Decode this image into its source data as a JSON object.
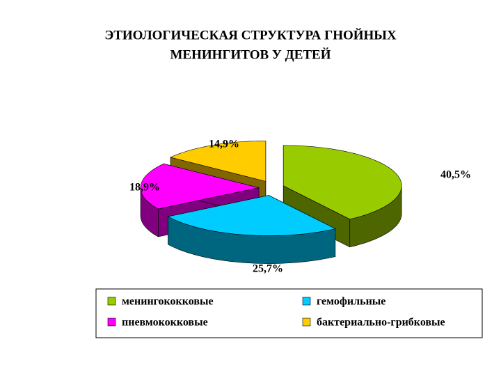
{
  "chart_data": {
    "type": "pie",
    "title": [
      "ЭТИОЛОГИЧЕСКАЯ  СТРУКТУРА  ГНОЙНЫХ",
      "МЕНИНГИТОВ  У  ДЕТЕЙ"
    ],
    "categories": [
      "менингококковые",
      "гемофильные",
      "пневмококковые",
      "бактериально-грибковые"
    ],
    "values": [
      40.5,
      25.7,
      18.9,
      14.9
    ],
    "value_labels": [
      "40,5%",
      "25,7%",
      "18,9%",
      "14,9%"
    ],
    "colors": [
      "#99cc00",
      "#00ccff",
      "#ff00ff",
      "#ffcc00"
    ]
  }
}
